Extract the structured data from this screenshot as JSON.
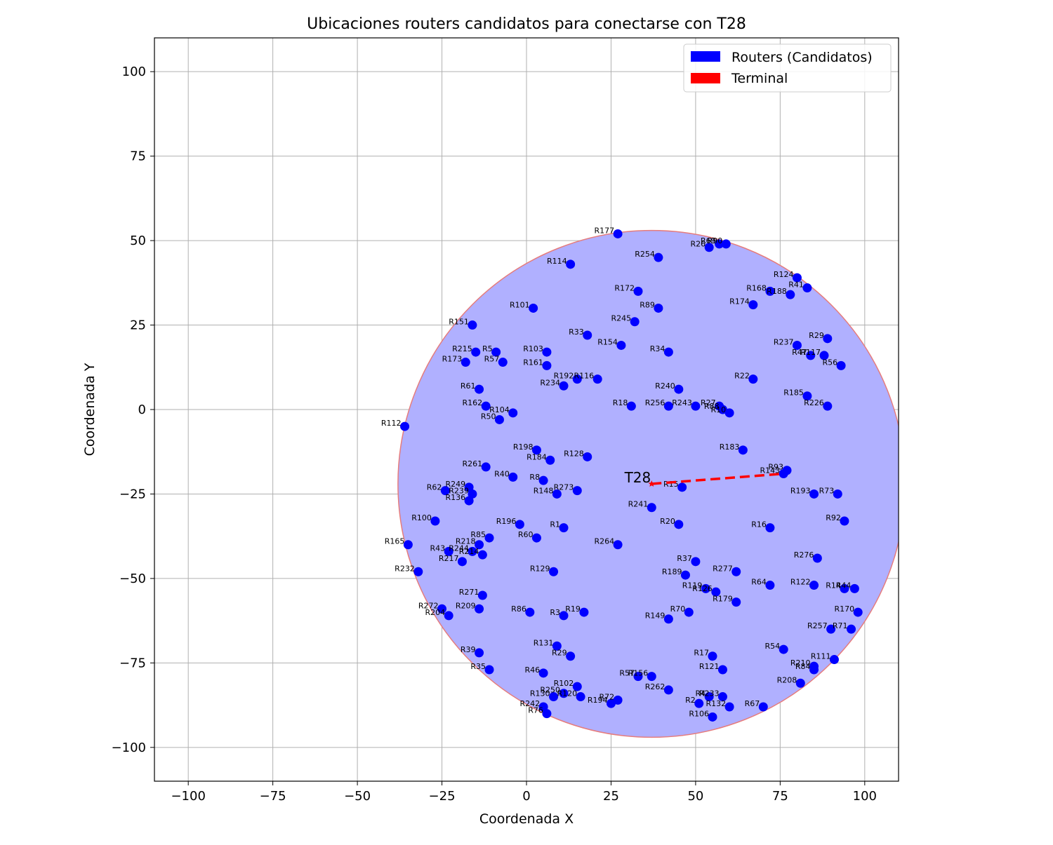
{
  "chart_data": {
    "type": "scatter",
    "title": "Ubicaciones routers candidatos para conectarse con T28",
    "xlabel": "Coordenada X",
    "ylabel": "Coordenada Y",
    "xlim": [
      -110,
      110
    ],
    "ylim": [
      -110,
      110
    ],
    "xticks": [
      -100,
      -75,
      -50,
      -25,
      0,
      25,
      50,
      75,
      100
    ],
    "yticks": [
      -100,
      -75,
      -50,
      -25,
      0,
      25,
      50,
      75,
      100
    ],
    "xtick_labels": [
      "−100",
      "−75",
      "−50",
      "−25",
      "0",
      "25",
      "50",
      "75",
      "100"
    ],
    "ytick_labels": [
      "−100",
      "−75",
      "−50",
      "−25",
      "0",
      "25",
      "50",
      "75",
      "100"
    ],
    "grid": true,
    "legend": {
      "location": "top-right",
      "entries": [
        {
          "label": "Routers (Candidatos)",
          "color": "#0000ff"
        },
        {
          "label": "Terminal",
          "color": "#ff0000"
        }
      ]
    },
    "coverage_circle": {
      "center": [
        37,
        -22
      ],
      "radius": 75,
      "fill": "#b0b0ff",
      "edge": "#e67c7c"
    },
    "terminal": {
      "name": "T28",
      "x": 37,
      "y": -22,
      "color": "#ff0000"
    },
    "link": {
      "from": [
        37,
        -22
      ],
      "to": [
        76,
        -19
      ],
      "color": "#ff0000",
      "style": "dashed"
    },
    "router_color": "#0000ff",
    "routers": [
      {
        "name": "R177",
        "x": 27,
        "y": 52
      },
      {
        "name": "R254",
        "x": 39,
        "y": 45
      },
      {
        "name": "R26",
        "x": 54,
        "y": 48
      },
      {
        "name": "R69",
        "x": 57,
        "y": 49
      },
      {
        "name": "R90",
        "x": 59,
        "y": 49
      },
      {
        "name": "R114",
        "x": 13,
        "y": 43
      },
      {
        "name": "R124",
        "x": 80,
        "y": 39
      },
      {
        "name": "R41",
        "x": 83,
        "y": 36
      },
      {
        "name": "R168",
        "x": 72,
        "y": 35
      },
      {
        "name": "R188",
        "x": 78,
        "y": 34
      },
      {
        "name": "R172",
        "x": 33,
        "y": 35
      },
      {
        "name": "R174",
        "x": 67,
        "y": 31
      },
      {
        "name": "R89",
        "x": 39,
        "y": 30
      },
      {
        "name": "R101",
        "x": 2,
        "y": 30
      },
      {
        "name": "R245",
        "x": 32,
        "y": 26
      },
      {
        "name": "R151",
        "x": -16,
        "y": 25
      },
      {
        "name": "R33",
        "x": 18,
        "y": 22
      },
      {
        "name": "R29",
        "x": 89,
        "y": 21
      },
      {
        "name": "R154",
        "x": 28,
        "y": 19
      },
      {
        "name": "R237",
        "x": 80,
        "y": 19
      },
      {
        "name": "R34",
        "x": 42,
        "y": 17
      },
      {
        "name": "R215",
        "x": -15,
        "y": 17
      },
      {
        "name": "R5",
        "x": -9,
        "y": 17
      },
      {
        "name": "R103",
        "x": 6,
        "y": 17
      },
      {
        "name": "R47",
        "x": 84,
        "y": 16
      },
      {
        "name": "R117",
        "x": 88,
        "y": 16
      },
      {
        "name": "R173",
        "x": -18,
        "y": 14
      },
      {
        "name": "R57",
        "x": -7,
        "y": 14
      },
      {
        "name": "R56",
        "x": 93,
        "y": 13
      },
      {
        "name": "R161",
        "x": 6,
        "y": 13
      },
      {
        "name": "R192",
        "x": 15,
        "y": 9
      },
      {
        "name": "R116",
        "x": 21,
        "y": 9
      },
      {
        "name": "R22",
        "x": 67,
        "y": 9
      },
      {
        "name": "R234",
        "x": 11,
        "y": 7
      },
      {
        "name": "R61",
        "x": -14,
        "y": 6
      },
      {
        "name": "R240",
        "x": 45,
        "y": 6
      },
      {
        "name": "R185",
        "x": 83,
        "y": 4
      },
      {
        "name": "R162",
        "x": -12,
        "y": 1
      },
      {
        "name": "R18",
        "x": 31,
        "y": 1
      },
      {
        "name": "R256",
        "x": 42,
        "y": 1
      },
      {
        "name": "R243",
        "x": 50,
        "y": 1
      },
      {
        "name": "R27",
        "x": 57,
        "y": 1
      },
      {
        "name": "R226",
        "x": 89,
        "y": 1
      },
      {
        "name": "R88",
        "x": 58,
        "y": 0
      },
      {
        "name": "R10",
        "x": 60,
        "y": -1
      },
      {
        "name": "R104",
        "x": -4,
        "y": -1
      },
      {
        "name": "R50",
        "x": -8,
        "y": -3
      },
      {
        "name": "R112",
        "x": -36,
        "y": -5
      },
      {
        "name": "R183",
        "x": 64,
        "y": -12
      },
      {
        "name": "R198",
        "x": 3,
        "y": -12
      },
      {
        "name": "R128",
        "x": 18,
        "y": -14
      },
      {
        "name": "R184",
        "x": 7,
        "y": -15
      },
      {
        "name": "R261",
        "x": -12,
        "y": -17
      },
      {
        "name": "R93",
        "x": 77,
        "y": -18
      },
      {
        "name": "R143",
        "x": 76,
        "y": -19
      },
      {
        "name": "R40",
        "x": -4,
        "y": -20
      },
      {
        "name": "R8",
        "x": 5,
        "y": -21
      },
      {
        "name": "R15",
        "x": 46,
        "y": -23
      },
      {
        "name": "R249",
        "x": -17,
        "y": -23
      },
      {
        "name": "R62",
        "x": -24,
        "y": -24
      },
      {
        "name": "R273",
        "x": 15,
        "y": -24
      },
      {
        "name": "R239",
        "x": -16,
        "y": -25
      },
      {
        "name": "R148",
        "x": 9,
        "y": -25
      },
      {
        "name": "R193",
        "x": 85,
        "y": -25
      },
      {
        "name": "R73",
        "x": 92,
        "y": -25
      },
      {
        "name": "R136",
        "x": -17,
        "y": -27
      },
      {
        "name": "R241",
        "x": 37,
        "y": -29
      },
      {
        "name": "R100",
        "x": -27,
        "y": -33
      },
      {
        "name": "R92",
        "x": 94,
        "y": -33
      },
      {
        "name": "R196",
        "x": -2,
        "y": -34
      },
      {
        "name": "R20",
        "x": 45,
        "y": -34
      },
      {
        "name": "R1",
        "x": 11,
        "y": -35
      },
      {
        "name": "R16",
        "x": 72,
        "y": -35
      },
      {
        "name": "R85",
        "x": -11,
        "y": -38
      },
      {
        "name": "R60",
        "x": 3,
        "y": -38
      },
      {
        "name": "R165",
        "x": -35,
        "y": -40
      },
      {
        "name": "R218",
        "x": -14,
        "y": -40
      },
      {
        "name": "R264",
        "x": 27,
        "y": -40
      },
      {
        "name": "R43",
        "x": -23,
        "y": -42
      },
      {
        "name": "R244",
        "x": -16,
        "y": -42
      },
      {
        "name": "R214",
        "x": -13,
        "y": -43
      },
      {
        "name": "R276",
        "x": 86,
        "y": -44
      },
      {
        "name": "R217",
        "x": -19,
        "y": -45
      },
      {
        "name": "R37",
        "x": 50,
        "y": -45
      },
      {
        "name": "R232",
        "x": -32,
        "y": -48
      },
      {
        "name": "R129",
        "x": 8,
        "y": -48
      },
      {
        "name": "R277",
        "x": 62,
        "y": -48
      },
      {
        "name": "R189",
        "x": 47,
        "y": -49
      },
      {
        "name": "R64",
        "x": 72,
        "y": -52
      },
      {
        "name": "R122",
        "x": 85,
        "y": -52
      },
      {
        "name": "R119",
        "x": 53,
        "y": -53
      },
      {
        "name": "R14",
        "x": 94,
        "y": -53
      },
      {
        "name": "R44",
        "x": 97,
        "y": -53
      },
      {
        "name": "R126",
        "x": 56,
        "y": -54
      },
      {
        "name": "R271",
        "x": -13,
        "y": -55
      },
      {
        "name": "R179",
        "x": 62,
        "y": -57
      },
      {
        "name": "R272",
        "x": -25,
        "y": -59
      },
      {
        "name": "R209",
        "x": -14,
        "y": -59
      },
      {
        "name": "R204",
        "x": -23,
        "y": -61
      },
      {
        "name": "R86",
        "x": 1,
        "y": -60
      },
      {
        "name": "R3",
        "x": 11,
        "y": -61
      },
      {
        "name": "R19",
        "x": 17,
        "y": -60
      },
      {
        "name": "R70",
        "x": 48,
        "y": -60
      },
      {
        "name": "R170",
        "x": 98,
        "y": -60
      },
      {
        "name": "R149",
        "x": 42,
        "y": -62
      },
      {
        "name": "R257",
        "x": 90,
        "y": -65
      },
      {
        "name": "R71",
        "x": 96,
        "y": -65
      },
      {
        "name": "R131",
        "x": 9,
        "y": -70
      },
      {
        "name": "R54",
        "x": 76,
        "y": -71
      },
      {
        "name": "R39",
        "x": -14,
        "y": -72
      },
      {
        "name": "R29b",
        "x": 13,
        "y": -73
      },
      {
        "name": "R17",
        "x": 55,
        "y": -73
      },
      {
        "name": "R111",
        "x": 91,
        "y": -74
      },
      {
        "name": "R35",
        "x": -11,
        "y": -77
      },
      {
        "name": "R121",
        "x": 58,
        "y": -77
      },
      {
        "name": "R210",
        "x": 85,
        "y": -76
      },
      {
        "name": "R84",
        "x": 85,
        "y": -77
      },
      {
        "name": "R46",
        "x": 5,
        "y": -78
      },
      {
        "name": "R57b",
        "x": 33,
        "y": -79
      },
      {
        "name": "R156",
        "x": 37,
        "y": -79
      },
      {
        "name": "R208",
        "x": 81,
        "y": -81
      },
      {
        "name": "R102",
        "x": 15,
        "y": -82
      },
      {
        "name": "R262",
        "x": 42,
        "y": -83
      },
      {
        "name": "R250",
        "x": 11,
        "y": -84
      },
      {
        "name": "R130",
        "x": 8,
        "y": -85
      },
      {
        "name": "R120",
        "x": 16,
        "y": -85
      },
      {
        "name": "R4",
        "x": 54,
        "y": -85
      },
      {
        "name": "R233",
        "x": 58,
        "y": -85
      },
      {
        "name": "R194",
        "x": 25,
        "y": -87
      },
      {
        "name": "R72",
        "x": 27,
        "y": -86
      },
      {
        "name": "R2",
        "x": 51,
        "y": -87
      },
      {
        "name": "R132",
        "x": 60,
        "y": -88
      },
      {
        "name": "R67",
        "x": 70,
        "y": -88
      },
      {
        "name": "R242",
        "x": 5,
        "y": -88
      },
      {
        "name": "R76",
        "x": 6,
        "y": -90
      },
      {
        "name": "R106",
        "x": 55,
        "y": -91
      }
    ]
  }
}
